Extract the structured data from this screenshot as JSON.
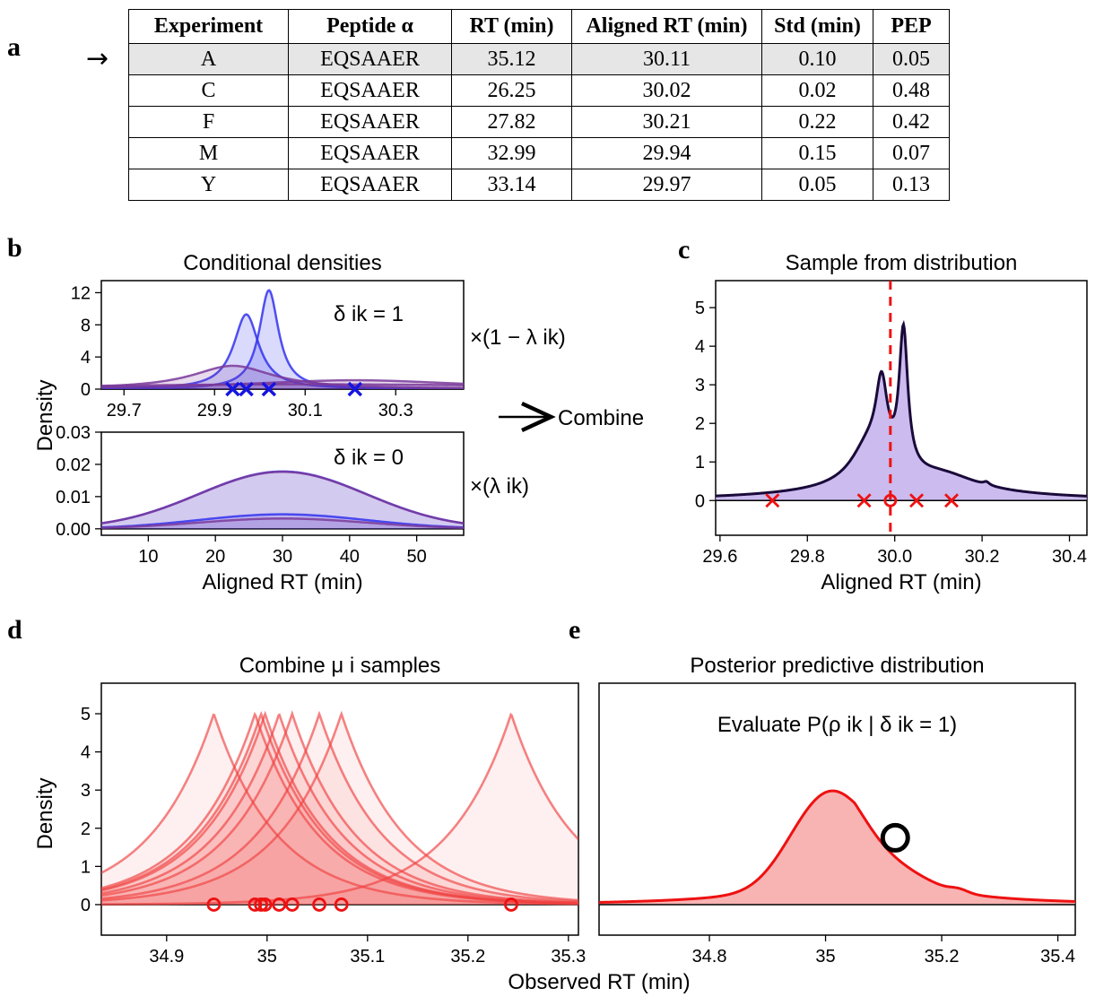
{
  "panel_labels": {
    "a": "a",
    "b": "b",
    "c": "c",
    "d": "d",
    "e": "e"
  },
  "table": {
    "headers": [
      "Experiment",
      "Peptide α",
      "RT (min)",
      "Aligned RT (min)",
      "Std (min)",
      "PEP"
    ],
    "rows": [
      [
        "A",
        "EQSAAER",
        "35.12",
        "30.11",
        "0.10",
        "0.05"
      ],
      [
        "C",
        "EQSAAER",
        "26.25",
        "30.02",
        "0.02",
        "0.48"
      ],
      [
        "F",
        "EQSAAER",
        "27.82",
        "30.21",
        "0.22",
        "0.42"
      ],
      [
        "M",
        "EQSAAER",
        "32.99",
        "29.94",
        "0.15",
        "0.07"
      ],
      [
        "Y",
        "EQSAAER",
        "33.14",
        "29.97",
        "0.05",
        "0.13"
      ]
    ],
    "highlight_row": 0,
    "arrow": "→"
  },
  "combine_text": "Combine",
  "combine_arrow": "⟶",
  "multipliers": {
    "top": "×(1 − λ ik)",
    "bottom": "×(λ ik)"
  },
  "colors": {
    "blue": "#3333ee",
    "purple": "#7a3a9a",
    "red": "#ee1111",
    "pink": "#f08080",
    "lavender": "#b9a4e8",
    "navy": "#1a0a3a"
  },
  "chart_data": [
    {
      "id": "b-top",
      "type": "line",
      "title": "Conditional densities",
      "annotation": "δ ik = 1",
      "ylabel": "Density",
      "xlabel": "",
      "xlim": [
        29.65,
        30.45
      ],
      "ylim": [
        0,
        13.5
      ],
      "xticks": [
        "29.7",
        "29.9",
        "30.1",
        "30.3"
      ],
      "yticks": [
        "0",
        "4",
        "8",
        "12"
      ],
      "series": [
        {
          "family": "cauchy",
          "center": 29.97,
          "scale": 0.034,
          "height": 9.3,
          "color": "blue"
        },
        {
          "family": "cauchy",
          "center": 30.02,
          "scale": 0.026,
          "height": 12.3,
          "color": "blue"
        },
        {
          "family": "cauchy",
          "center": 29.94,
          "scale": 0.11,
          "height": 2.9,
          "color": "purple"
        },
        {
          "family": "cauchy",
          "center": 30.21,
          "scale": 0.3,
          "height": 1.1,
          "color": "purple"
        },
        {
          "family": "cauchy",
          "center": 30.11,
          "scale": 0.7,
          "height": 0.6,
          "color": "purple"
        }
      ],
      "markers": [
        29.94,
        29.97,
        30.02,
        30.21
      ]
    },
    {
      "id": "b-bottom",
      "type": "line",
      "annotation": "δ ik = 0",
      "ylabel": "",
      "xlabel": "Aligned RT (min)",
      "xlim": [
        3,
        57
      ],
      "ylim": [
        -0.002,
        0.03
      ],
      "xticks": [
        "10",
        "20",
        "30",
        "40",
        "50"
      ],
      "yticks": [
        "0.00",
        "0.01",
        "0.02",
        "0.03"
      ],
      "series": [
        {
          "family": "gauss",
          "center": 30,
          "sd": 12.5,
          "height": 0.0178,
          "color": "blue"
        },
        {
          "family": "gauss",
          "center": 30,
          "sd": 12.5,
          "height": 0.0177,
          "color": "purple"
        },
        {
          "family": "gauss",
          "center": 30,
          "sd": 12.5,
          "height": 0.0045,
          "color": "blue"
        },
        {
          "family": "gauss",
          "center": 30,
          "sd": 12.5,
          "height": 0.0032,
          "color": "purple"
        }
      ]
    },
    {
      "id": "c",
      "type": "area",
      "title": "Sample from distribution",
      "xlabel": "Aligned RT (min)",
      "ylabel": "",
      "xlim": [
        29.59,
        30.44
      ],
      "ylim": [
        -0.9,
        5.7
      ],
      "xticks": [
        "29.6",
        "29.8",
        "30.0",
        "30.2",
        "30.4"
      ],
      "yticks": [
        "0",
        "1",
        "2",
        "3",
        "4",
        "5"
      ],
      "components": [
        {
          "center": 29.97,
          "scale": 0.016,
          "height": 2.0
        },
        {
          "center": 30.02,
          "scale": 0.012,
          "height": 3.6
        },
        {
          "center": 29.94,
          "scale": 0.05,
          "height": 1.0
        },
        {
          "center": 30.11,
          "scale": 0.1,
          "height": 0.4
        },
        {
          "center": 30.21,
          "scale": 0.008,
          "height": 0.08
        },
        {
          "center": 29.99,
          "scale": 0.25,
          "height": 0.28
        }
      ],
      "crosses": [
        29.72,
        29.93,
        30.05,
        30.13
      ],
      "sample": 29.99,
      "dashed_line": 29.99
    },
    {
      "id": "d",
      "type": "area",
      "title": "Combine μ i samples",
      "ylabel": "Density",
      "xlabel": "",
      "xlim": [
        34.835,
        35.31
      ],
      "ylim": [
        -0.8,
        5.8
      ],
      "xticks": [
        "34.9",
        "35",
        "35.1",
        "35.2",
        "35.3"
      ],
      "yticks": [
        "0",
        "1",
        "2",
        "3",
        "4",
        "5"
      ],
      "peak_height": 5,
      "decay": 16,
      "centers": [
        34.947,
        34.988,
        34.994,
        34.998,
        35.012,
        35.025,
        35.052,
        35.074,
        35.243
      ]
    },
    {
      "id": "e",
      "type": "area",
      "title": "Posterior predictive distribution",
      "annotation": "Evaluate P(ρ ik | δ ik = 1)",
      "ylabel": "",
      "xlabel": "",
      "xlim": [
        34.61,
        35.43
      ],
      "ylim": [
        -0.8,
        5.8
      ],
      "xticks": [
        "34.8",
        "35",
        "35.2",
        "35.4"
      ],
      "yticks": [],
      "components": [
        {
          "center": 34.96,
          "sd": 0.05,
          "height": 1.0
        },
        {
          "center": 35.02,
          "sd": 0.05,
          "height": 1.6
        },
        {
          "center": 35.11,
          "sd": 0.06,
          "height": 0.45
        },
        {
          "center": 35.23,
          "sd": 0.015,
          "height": 0.08
        }
      ],
      "base": {
        "center": 35.0,
        "scale": 0.33,
        "height": 1.35
      },
      "evaluate_point": {
        "x": 35.12,
        "y": 1.75
      }
    }
  ],
  "shared_xlabel": "Observed RT (min)"
}
